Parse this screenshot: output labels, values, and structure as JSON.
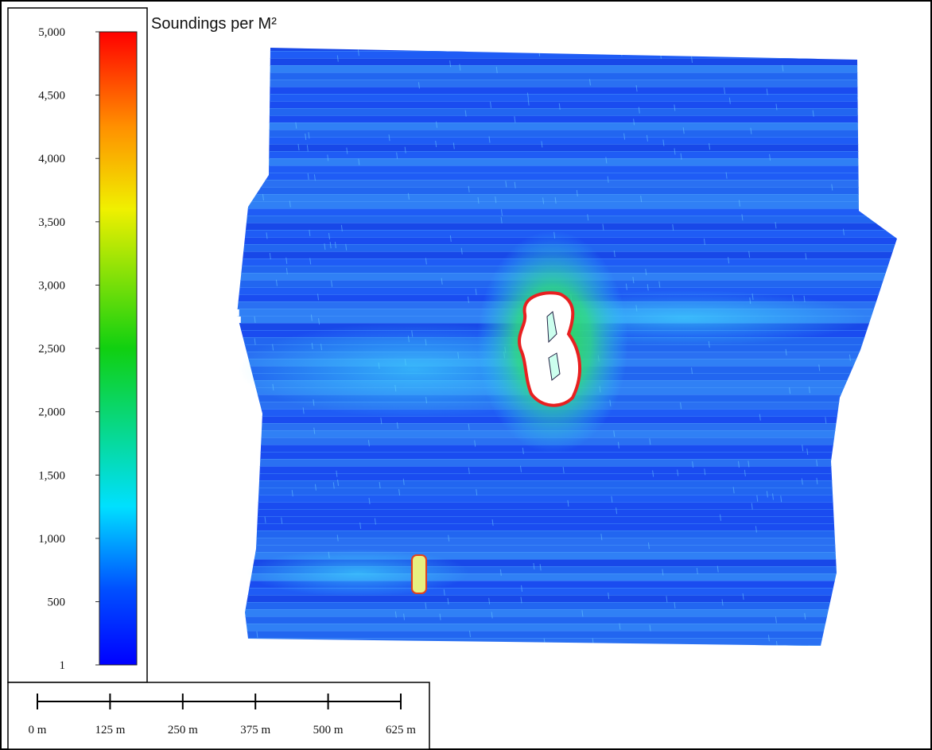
{
  "legend": {
    "title": "Soundings per M²",
    "range": [
      1,
      5000
    ],
    "ticks": [
      {
        "value": 5000,
        "label": "5,000"
      },
      {
        "value": 4500,
        "label": "4,500"
      },
      {
        "value": 4000,
        "label": "4,000"
      },
      {
        "value": 3500,
        "label": "3,500"
      },
      {
        "value": 3000,
        "label": "3,000"
      },
      {
        "value": 2500,
        "label": "2,500"
      },
      {
        "value": 2000,
        "label": "2,000"
      },
      {
        "value": 1500,
        "label": "1,500"
      },
      {
        "value": 1000,
        "label": "1,000"
      },
      {
        "value": 500,
        "label": "500"
      },
      {
        "value": 1,
        "label": "1"
      }
    ]
  },
  "scale_bar": {
    "range": [
      0,
      625
    ],
    "ticks": [
      {
        "value": 0,
        "label": "0 m"
      },
      {
        "value": 125,
        "label": "125 m"
      },
      {
        "value": 250,
        "label": "250 m"
      },
      {
        "value": 375,
        "label": "375 m"
      },
      {
        "value": 500,
        "label": "500 m"
      },
      {
        "value": 625,
        "label": "625 m"
      }
    ]
  }
}
